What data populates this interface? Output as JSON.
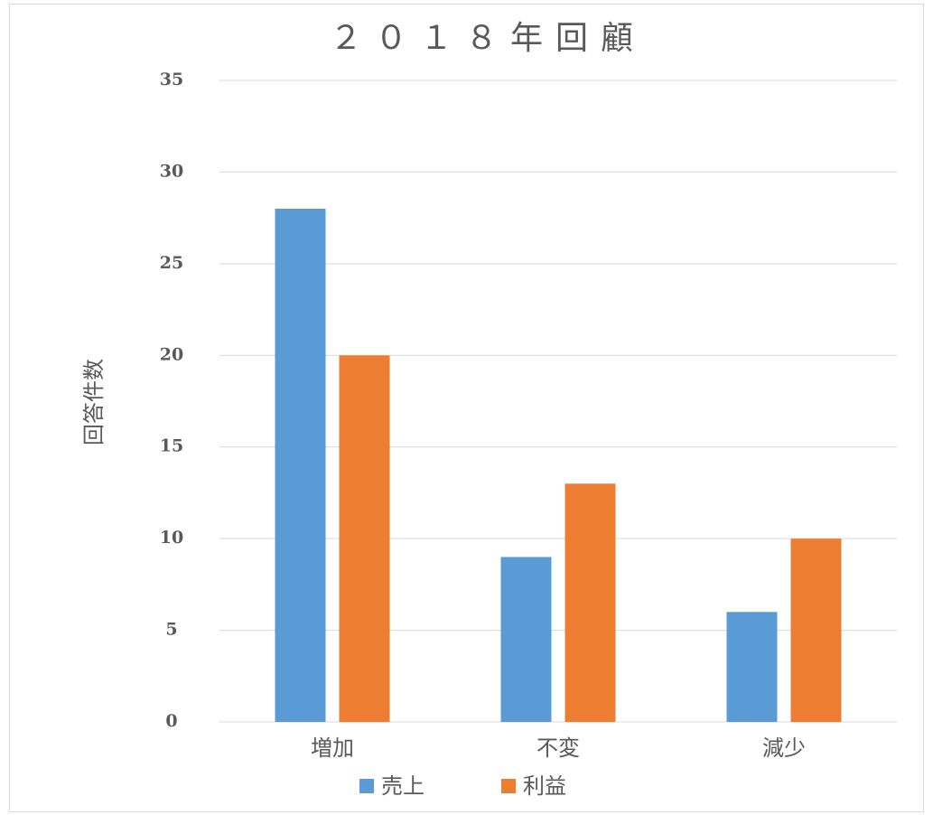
{
  "chart_data": {
    "type": "bar",
    "title": "２０１８年回顧",
    "ylabel": "回答件数",
    "categories": [
      "増加",
      "不変",
      "減少"
    ],
    "series": [
      {
        "name": "売上",
        "color": "#5b9bd5",
        "values": [
          28,
          9,
          6
        ]
      },
      {
        "name": "利益",
        "color": "#ed7d31",
        "values": [
          20,
          13,
          10
        ]
      }
    ],
    "ylim": [
      0,
      35
    ],
    "yticks": [
      0,
      5,
      10,
      15,
      20,
      25,
      30,
      35
    ],
    "grid": true,
    "legend": "bottom"
  }
}
